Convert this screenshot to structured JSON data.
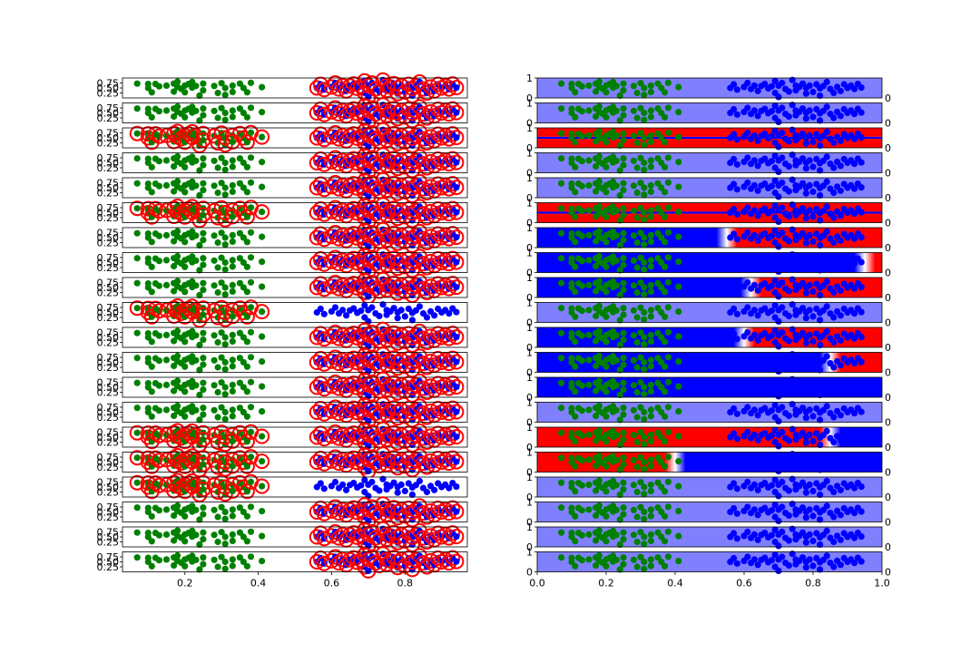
{
  "colors": {
    "class_a": "#008000",
    "class_b": "#0000ff",
    "circle": "#ff0000",
    "pos_region": "#ff0000",
    "neg_region": "#0000ff",
    "uniform_region": "#8080ff"
  },
  "chart_data": [
    {
      "type": "scatter",
      "title": "",
      "xlabel": "",
      "ylabel": "",
      "xlim": [
        0.03,
        0.97
      ],
      "ylim": [
        0,
        1
      ],
      "x_ticks": [
        "0.2",
        "0.4",
        "0.6",
        "0.8"
      ],
      "y_ticks": [
        "0.25",
        "0.50",
        "0.75"
      ],
      "panel_count": 20,
      "series": [
        {
          "marker": "filled-circle",
          "points": [
            [
              0.07,
              0.72
            ],
            [
              0.1,
              0.5
            ],
            [
              0.1,
              0.7
            ],
            [
              0.11,
              0.28
            ],
            [
              0.12,
              0.7
            ],
            [
              0.13,
              0.58
            ],
            [
              0.15,
              0.62
            ],
            [
              0.17,
              0.32
            ],
            [
              0.17,
              0.72
            ],
            [
              0.18,
              0.55
            ],
            [
              0.18,
              0.82
            ],
            [
              0.19,
              0.46
            ],
            [
              0.2,
              0.62
            ],
            [
              0.2,
              0.28
            ],
            [
              0.21,
              0.7
            ],
            [
              0.22,
              0.52
            ],
            [
              0.22,
              0.8
            ],
            [
              0.23,
              0.6
            ],
            [
              0.24,
              0.12
            ],
            [
              0.25,
              0.72
            ],
            [
              0.25,
              0.38
            ],
            [
              0.28,
              0.6
            ],
            [
              0.29,
              0.25
            ],
            [
              0.3,
              0.74
            ],
            [
              0.31,
              0.15
            ],
            [
              0.31,
              0.5
            ],
            [
              0.33,
              0.62
            ],
            [
              0.33,
              0.3
            ],
            [
              0.35,
              0.72
            ],
            [
              0.36,
              0.5
            ],
            [
              0.37,
              0.28
            ],
            [
              0.38,
              0.76
            ],
            [
              0.41,
              0.54
            ]
          ]
        },
        {
          "marker": "filled-circle",
          "points": [
            [
              0.56,
              0.5
            ],
            [
              0.57,
              0.68
            ],
            [
              0.58,
              0.42
            ],
            [
              0.6,
              0.55
            ],
            [
              0.61,
              0.75
            ],
            [
              0.62,
              0.45
            ],
            [
              0.63,
              0.62
            ],
            [
              0.64,
              0.35
            ],
            [
              0.65,
              0.6
            ],
            [
              0.66,
              0.7
            ],
            [
              0.67,
              0.48
            ],
            [
              0.68,
              0.58
            ],
            [
              0.69,
              0.25
            ],
            [
              0.69,
              0.85
            ],
            [
              0.7,
              0.62
            ],
            [
              0.7,
              0.05
            ],
            [
              0.71,
              0.75
            ],
            [
              0.72,
              0.45
            ],
            [
              0.73,
              0.32
            ],
            [
              0.74,
              0.9
            ],
            [
              0.75,
              0.62
            ],
            [
              0.75,
              0.38
            ],
            [
              0.76,
              0.55
            ],
            [
              0.77,
              0.72
            ],
            [
              0.78,
              0.22
            ],
            [
              0.78,
              0.5
            ],
            [
              0.79,
              0.62
            ],
            [
              0.8,
              0.3
            ],
            [
              0.81,
              0.68
            ],
            [
              0.82,
              0.12
            ],
            [
              0.82,
              0.48
            ],
            [
              0.83,
              0.6
            ],
            [
              0.84,
              0.8
            ],
            [
              0.85,
              0.45
            ],
            [
              0.86,
              0.25
            ],
            [
              0.87,
              0.55
            ],
            [
              0.88,
              0.35
            ],
            [
              0.89,
              0.68
            ],
            [
              0.9,
              0.5
            ],
            [
              0.91,
              0.62
            ],
            [
              0.92,
              0.45
            ],
            [
              0.93,
              0.7
            ],
            [
              0.94,
              0.52
            ]
          ]
        }
      ],
      "circled": [
        "b",
        "b",
        "both",
        "b",
        "b",
        "both",
        "b",
        "b",
        "b",
        "a",
        "b",
        "b",
        "b",
        "b",
        "both",
        "both",
        "a",
        "b",
        "b",
        "b"
      ]
    },
    {
      "type": "heatmap",
      "title": "",
      "xlabel": "",
      "ylabel": "",
      "xlim": [
        0,
        1
      ],
      "ylim": [
        0,
        1
      ],
      "x_ticks": [
        "0.0",
        "0.2",
        "0.4",
        "0.6",
        "0.8",
        "1.0"
      ],
      "y_ticks": [
        "0",
        "1"
      ],
      "right_tick": "0",
      "panel_count": 20,
      "shading": [
        "uniform",
        "uniform",
        "red-high-and-low",
        "uniform",
        "uniform",
        "red-high-and-low",
        "blue-to-red-0.55",
        "blue-to-red-0.95",
        "blue-to-red-0.62",
        "uniform",
        "blue-to-red-0.6",
        "blue-to-red-0.85",
        "blue",
        "uniform",
        "red-to-blue-0.85",
        "red-to-blue-0.4",
        "uniform",
        "uniform",
        "uniform",
        "uniform"
      ]
    }
  ]
}
